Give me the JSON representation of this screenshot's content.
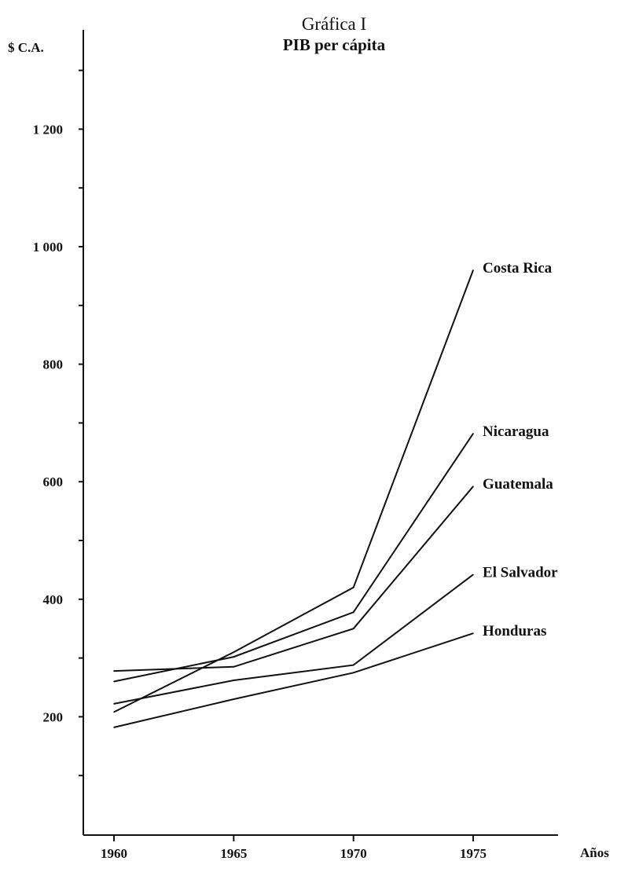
{
  "chart_data": {
    "type": "line",
    "title": "Gráfica I",
    "subtitle": "PIB per cápita",
    "ylabel": "$ C.A.",
    "xlabel": "Años",
    "x": [
      1960,
      1965,
      1970,
      1975
    ],
    "x_tick_labels": [
      "1960",
      "1965",
      "1970",
      "1975"
    ],
    "ylim": [
      0,
      1400
    ],
    "y_major_ticks": [
      200,
      400,
      600,
      800,
      1000,
      1200
    ],
    "y_tick_labels": [
      "200",
      "400",
      "600",
      "800",
      "1 000",
      "1 200"
    ],
    "y_minor_ticks": [
      100,
      300,
      500,
      700,
      900,
      1100,
      1300
    ],
    "grid": false,
    "legend": "labels at line ends",
    "series": [
      {
        "name": "Costa Rica",
        "values": [
          208,
          310,
          420,
          960
        ]
      },
      {
        "name": "Nicaragua",
        "values": [
          260,
          302,
          378,
          682
        ]
      },
      {
        "name": "Guatemala",
        "values": [
          278,
          285,
          350,
          592
        ]
      },
      {
        "name": "El Salvador",
        "values": [
          222,
          262,
          288,
          442
        ]
      },
      {
        "name": "Honduras",
        "values": [
          182,
          230,
          275,
          342
        ]
      }
    ]
  }
}
